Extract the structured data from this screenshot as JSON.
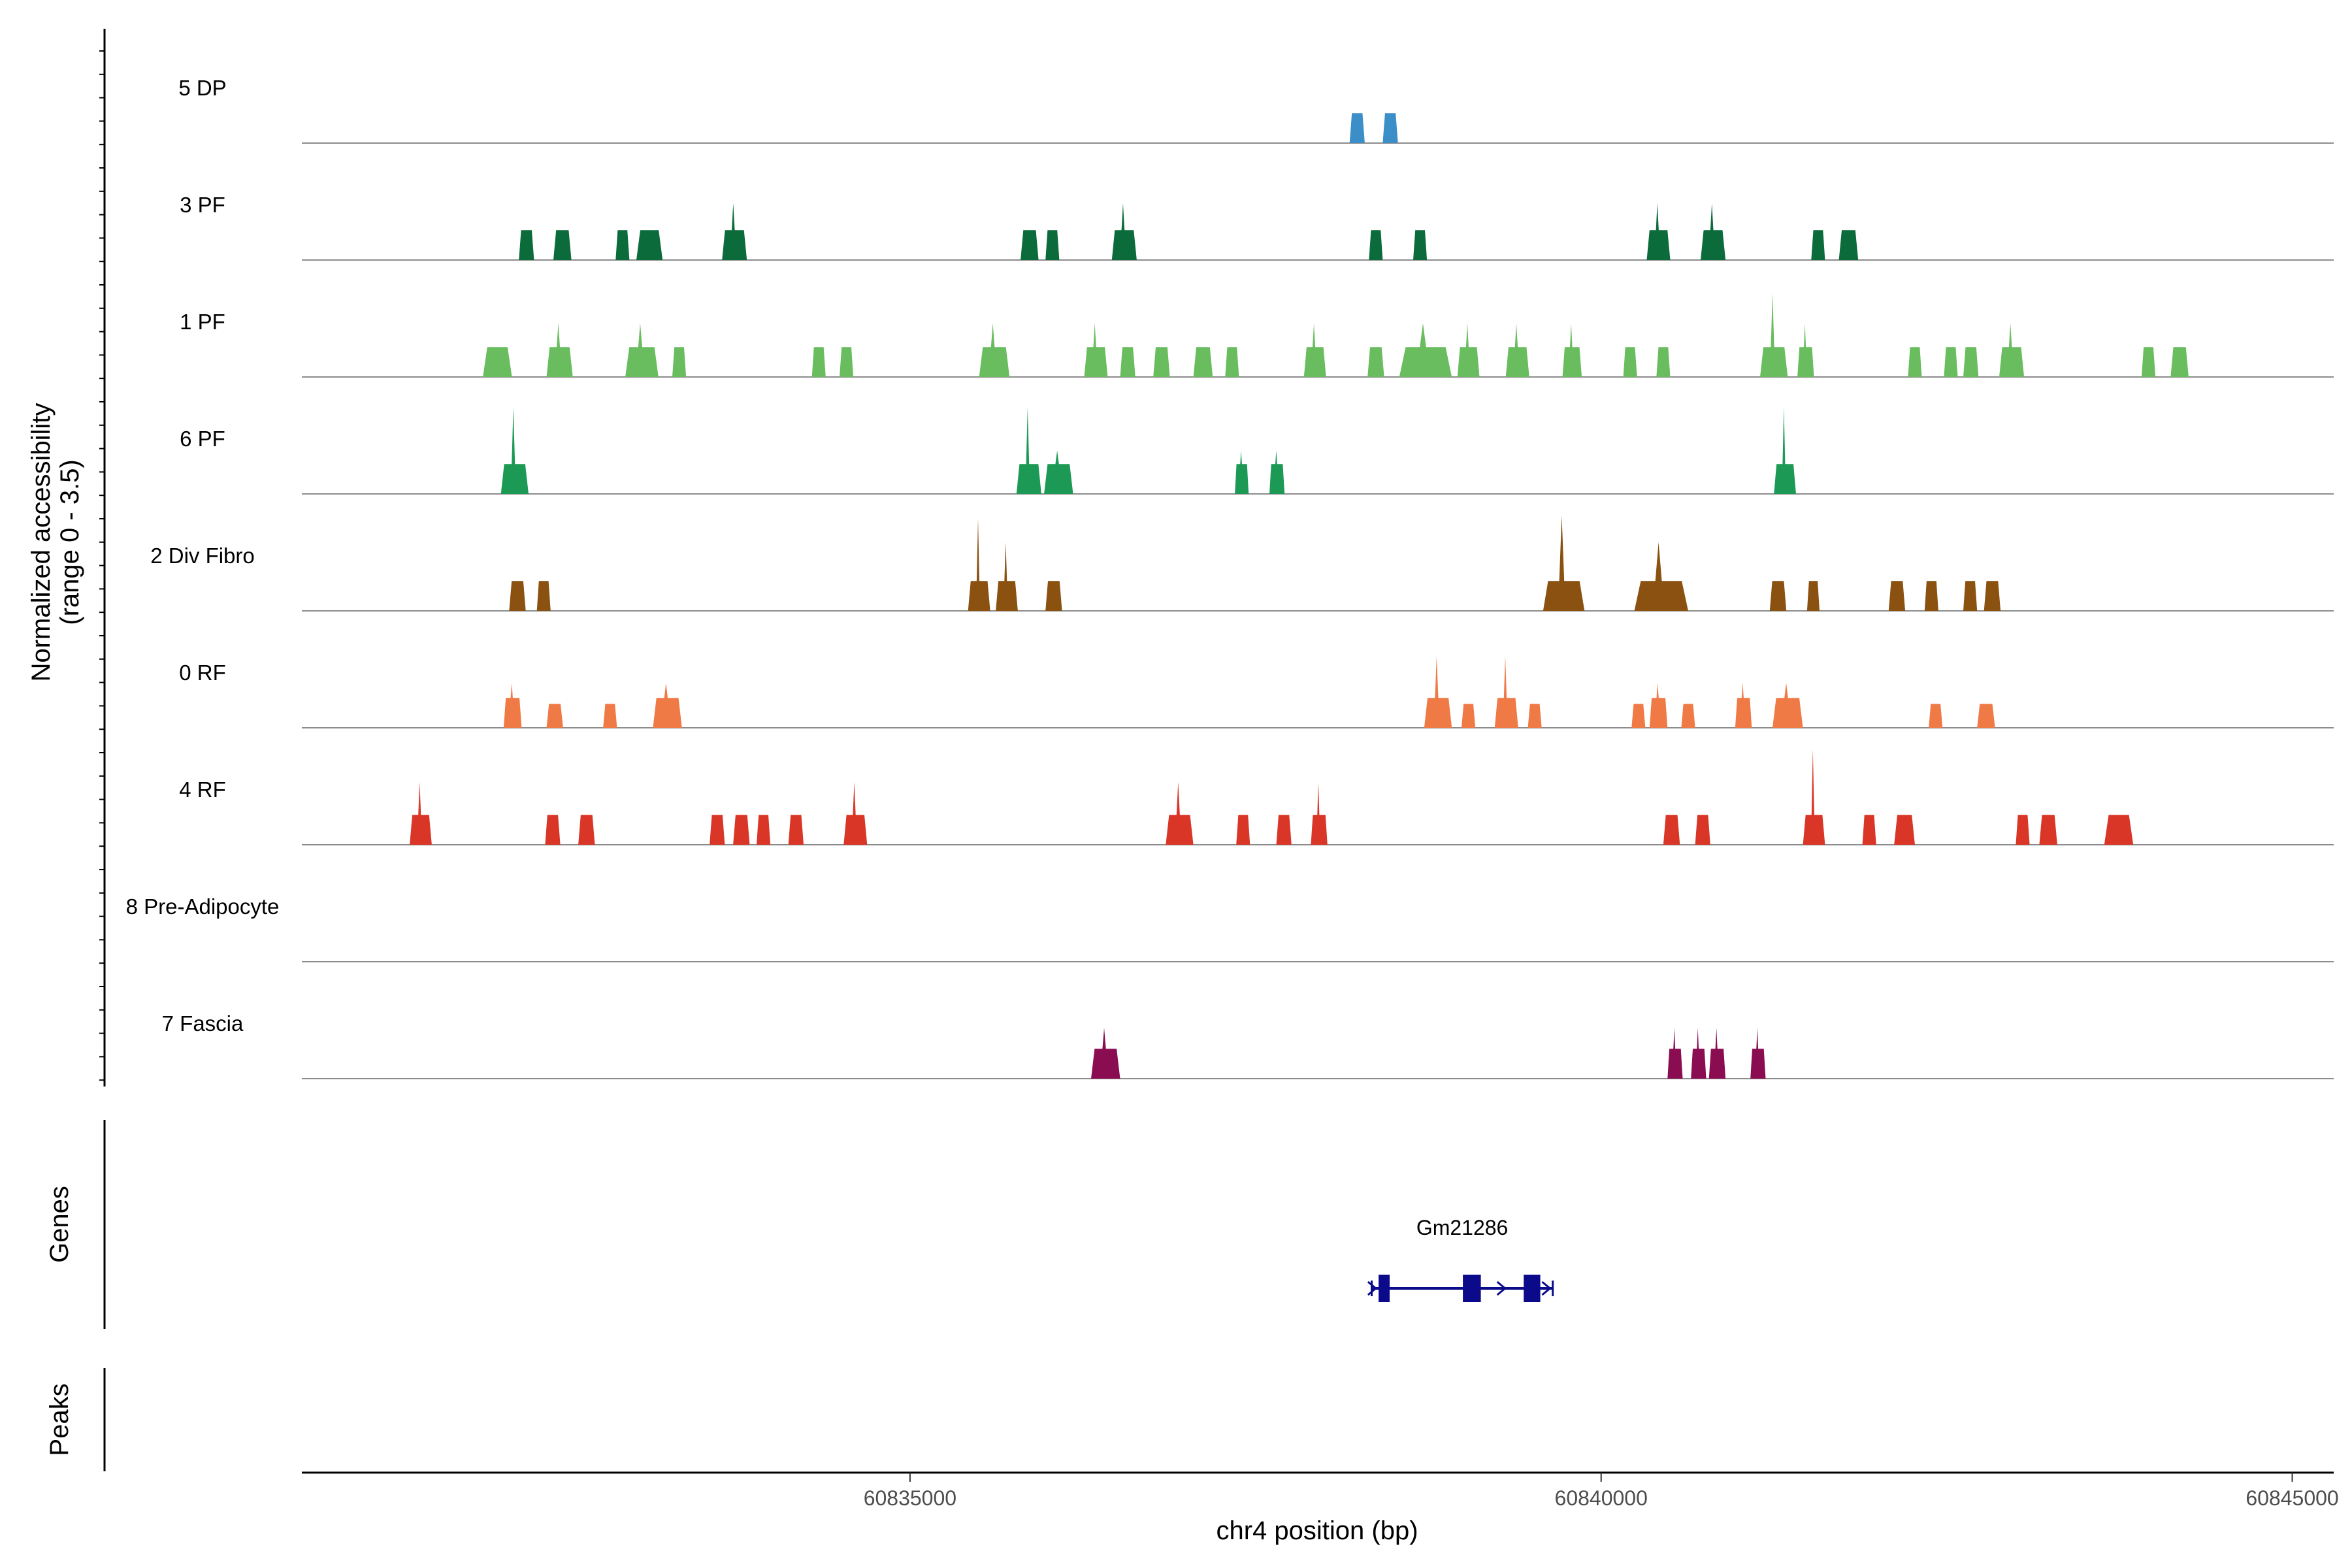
{
  "chart_data": {
    "type": "area",
    "chromosome": "chr4",
    "x_range": [
      60830600,
      60845300
    ],
    "x_ticks": [
      {
        "value": 60835000,
        "label": "60835000"
      },
      {
        "value": 60840000,
        "label": "60840000"
      },
      {
        "value": 60845000,
        "label": "60845000"
      }
    ],
    "xlabel": "chr4 position (bp)",
    "ylabel_line1": "Normalized accessibility",
    "ylabel_line2": "(range 0 - 3.5)",
    "ylim": [
      0,
      3.5
    ],
    "genes_label": "Genes",
    "peaks_label": "Peaks",
    "tracks": [
      {
        "name": "5 DP",
        "color": "#3b8ec8",
        "peaks": [
          [
            60838180,
            60838290,
            1
          ],
          [
            60838420,
            60838530,
            1
          ]
        ]
      },
      {
        "name": "3 PF",
        "color": "#0b6b3a",
        "peaks": [
          [
            60832170,
            60832280,
            1
          ],
          [
            60832420,
            60832550,
            1
          ],
          [
            60832870,
            60832970,
            1
          ],
          [
            60833020,
            60833210,
            1
          ],
          [
            60833640,
            60833820,
            1.9
          ],
          [
            60835800,
            60835930,
            1
          ],
          [
            60835980,
            60836080,
            1
          ],
          [
            60836460,
            60836640,
            1.9
          ],
          [
            60838320,
            60838420,
            1
          ],
          [
            60838640,
            60838740,
            1
          ],
          [
            60840330,
            60840500,
            1.9
          ],
          [
            60840720,
            60840900,
            1.9
          ],
          [
            60841520,
            60841620,
            1
          ],
          [
            60841720,
            60841860,
            1
          ]
        ]
      },
      {
        "name": "1 PF",
        "color": "#69bd5f",
        "peaks": [
          [
            60831910,
            60832120,
            1
          ],
          [
            60832370,
            60832560,
            1.8
          ],
          [
            60832940,
            60833180,
            1.8
          ],
          [
            60833280,
            60833380,
            1
          ],
          [
            60834290,
            60834390,
            1
          ],
          [
            60834490,
            60834590,
            1
          ],
          [
            60835500,
            60835720,
            1.8
          ],
          [
            60836260,
            60836430,
            1.8
          ],
          [
            60836520,
            60836630,
            1
          ],
          [
            60836760,
            60836880,
            1
          ],
          [
            60837050,
            60837190,
            1
          ],
          [
            60837280,
            60837380,
            1
          ],
          [
            60837850,
            60838010,
            1.8
          ],
          [
            60838310,
            60838430,
            1
          ],
          [
            60838540,
            60838920,
            1.8
          ],
          [
            60838960,
            60839120,
            1.8
          ],
          [
            60839310,
            60839480,
            1.8
          ],
          [
            60839720,
            60839860,
            1.8
          ],
          [
            60840160,
            60840260,
            1
          ],
          [
            60840400,
            60840500,
            1
          ],
          [
            60841150,
            60841350,
            2.8
          ],
          [
            60841420,
            60841540,
            1.8
          ],
          [
            60842220,
            60842320,
            1
          ],
          [
            60842480,
            60842580,
            1
          ],
          [
            60842620,
            60842730,
            1
          ],
          [
            60842880,
            60843060,
            1.8
          ],
          [
            60843910,
            60844010,
            1
          ],
          [
            60844120,
            60844250,
            1
          ]
        ]
      },
      {
        "name": "6 PF",
        "color": "#1c9a55",
        "peaks": [
          [
            60832040,
            60832240,
            2.9
          ],
          [
            60835770,
            60835950,
            2.9
          ],
          [
            60835970,
            60836180,
            1.45
          ],
          [
            60837350,
            60837450,
            1.45
          ],
          [
            60837600,
            60837710,
            1.45
          ],
          [
            60841250,
            60841410,
            2.9
          ]
        ]
      },
      {
        "name": "2 Div Fibro",
        "color": "#8a5111",
        "peaks": [
          [
            60832100,
            60832220,
            1
          ],
          [
            60832300,
            60832400,
            1
          ],
          [
            60835420,
            60835580,
            3.1
          ],
          [
            60835620,
            60835780,
            2.3
          ],
          [
            60835980,
            60836100,
            1
          ],
          [
            60839580,
            60839880,
            3.2
          ],
          [
            60840240,
            60840630,
            2.3
          ],
          [
            60841220,
            60841340,
            1
          ],
          [
            60841490,
            60841580,
            1
          ],
          [
            60842080,
            60842200,
            1
          ],
          [
            60842340,
            60842440,
            1
          ],
          [
            60842620,
            60842720,
            1
          ],
          [
            60842770,
            60842890,
            1
          ]
        ]
      },
      {
        "name": "0 RF",
        "color": "#f07a45",
        "peaks": [
          [
            60832060,
            60832190,
            1.5
          ],
          [
            60832370,
            60832490,
            0.8
          ],
          [
            60832780,
            60832880,
            0.8
          ],
          [
            60833140,
            60833350,
            1.5
          ],
          [
            60838720,
            60838920,
            2.4
          ],
          [
            60838990,
            60839090,
            0.8
          ],
          [
            60839230,
            60839400,
            2.4
          ],
          [
            60839470,
            60839570,
            0.8
          ],
          [
            60840220,
            60840320,
            0.8
          ],
          [
            60840350,
            60840480,
            1.5
          ],
          [
            60840580,
            60840680,
            0.8
          ],
          [
            60840970,
            60841090,
            1.5
          ],
          [
            60841240,
            60841460,
            1.5
          ],
          [
            60842370,
            60842470,
            0.8
          ],
          [
            60842720,
            60842850,
            0.8
          ]
        ]
      },
      {
        "name": "4 RF",
        "color": "#d93627",
        "peaks": [
          [
            60831380,
            60831540,
            2.1
          ],
          [
            60832360,
            60832470,
            1
          ],
          [
            60832600,
            60832720,
            1
          ],
          [
            60833550,
            60833660,
            1
          ],
          [
            60833720,
            60833840,
            1
          ],
          [
            60833890,
            60833990,
            1
          ],
          [
            60834120,
            60834230,
            1
          ],
          [
            60834520,
            60834690,
            2.1
          ],
          [
            60836850,
            60837050,
            2.1
          ],
          [
            60837360,
            60837460,
            1
          ],
          [
            60837650,
            60837760,
            1
          ],
          [
            60837900,
            60838020,
            2.1
          ],
          [
            60840450,
            60840570,
            1
          ],
          [
            60840680,
            60840790,
            1
          ],
          [
            60841460,
            60841620,
            3.2
          ],
          [
            60841890,
            60841990,
            1
          ],
          [
            60842120,
            60842270,
            1
          ],
          [
            60843000,
            60843100,
            1
          ],
          [
            60843170,
            60843300,
            1
          ],
          [
            60843640,
            60843850,
            1
          ]
        ]
      },
      {
        "name": "8 Pre-Adipocyte",
        "color": "#c36c9e",
        "peaks": []
      },
      {
        "name": "7 Fascia",
        "color": "#8a0d52",
        "peaks": [
          [
            60836310,
            60836520,
            1.7
          ],
          [
            60840480,
            60840590,
            1.7
          ],
          [
            60840650,
            60840760,
            1.7
          ],
          [
            60840780,
            60840900,
            1.7
          ],
          [
            60841080,
            60841190,
            1.7
          ]
        ]
      }
    ],
    "gene": {
      "name": "Gm21286",
      "color": "#0a0a8a",
      "start": 60838340,
      "end": 60839650,
      "strand": "+",
      "exons": [
        [
          60838390,
          60838470
        ],
        [
          60839000,
          60839130
        ],
        [
          60839440,
          60839560
        ]
      ]
    }
  }
}
